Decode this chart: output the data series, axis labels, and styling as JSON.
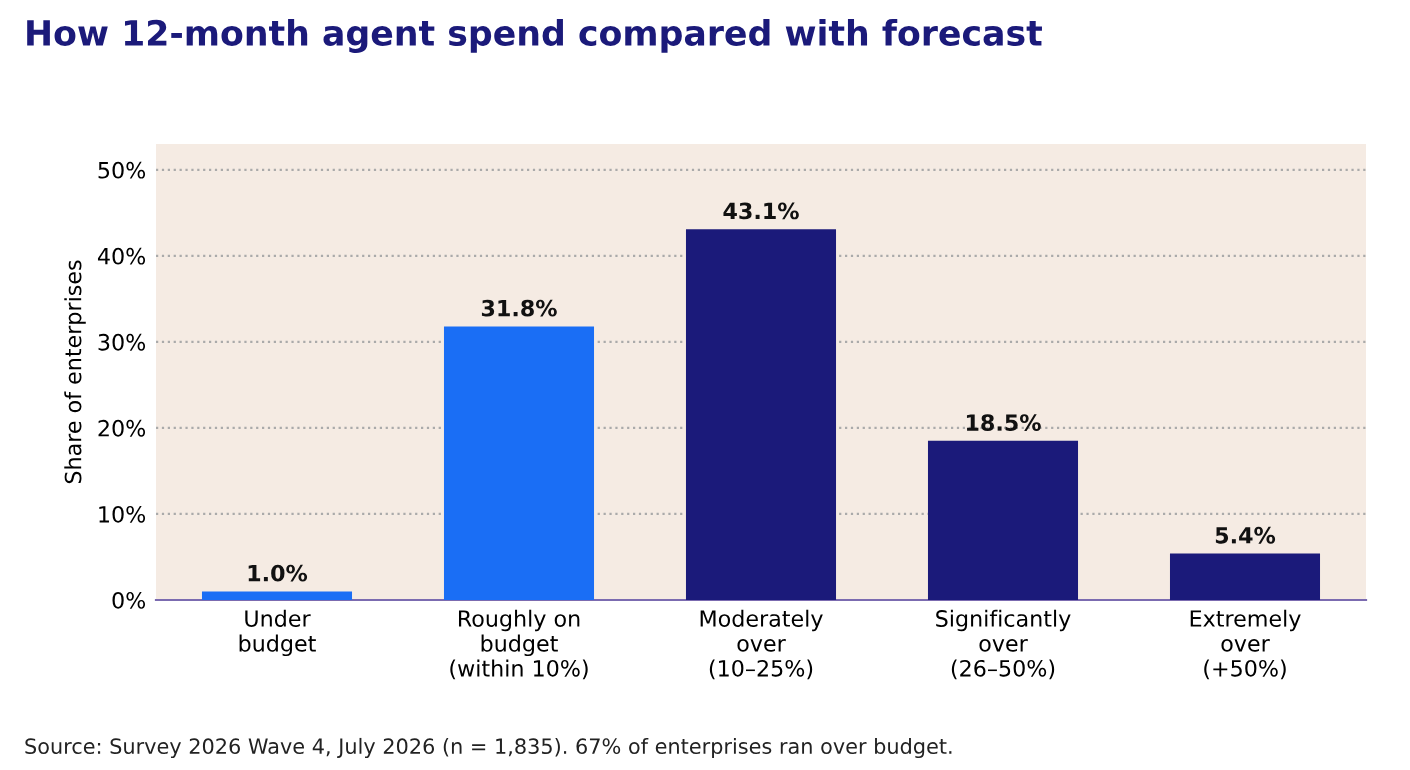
{
  "chart_data": {
    "type": "bar",
    "title": "How 12-month agent spend compared with forecast",
    "ylabel": "Share of enterprises",
    "categories": [
      "Under\nbudget",
      "Roughly on\nbudget\n(within 10%)",
      "Moderately\nover\n(10–25%)",
      "Significantly\nover\n(26–50%)",
      "Extremely\nover\n(+50%)"
    ],
    "values": [
      1.0,
      31.8,
      43.1,
      18.5,
      5.4
    ],
    "colors": [
      "#1a6ef5",
      "#1a6ef5",
      "#1b1a7a",
      "#1b1a7a",
      "#1b1a7a"
    ],
    "value_labels": [
      "1.0%",
      "31.8%",
      "43.1%",
      "18.5%",
      "5.4%"
    ],
    "ylim": [
      0,
      53
    ],
    "yticks": [
      {
        "value": 0,
        "label": "0%"
      },
      {
        "value": 10,
        "label": "10%"
      },
      {
        "value": 20,
        "label": "20%"
      },
      {
        "value": 30,
        "label": "30%"
      },
      {
        "value": 40,
        "label": "40%"
      },
      {
        "value": 50,
        "label": "50%"
      }
    ],
    "grid": "y",
    "legend": false,
    "annotations": [
      "Source: Survey 2026 Wave 4, July 2026 (n = 1,835). 67% of enterprises ran over budget."
    ]
  }
}
